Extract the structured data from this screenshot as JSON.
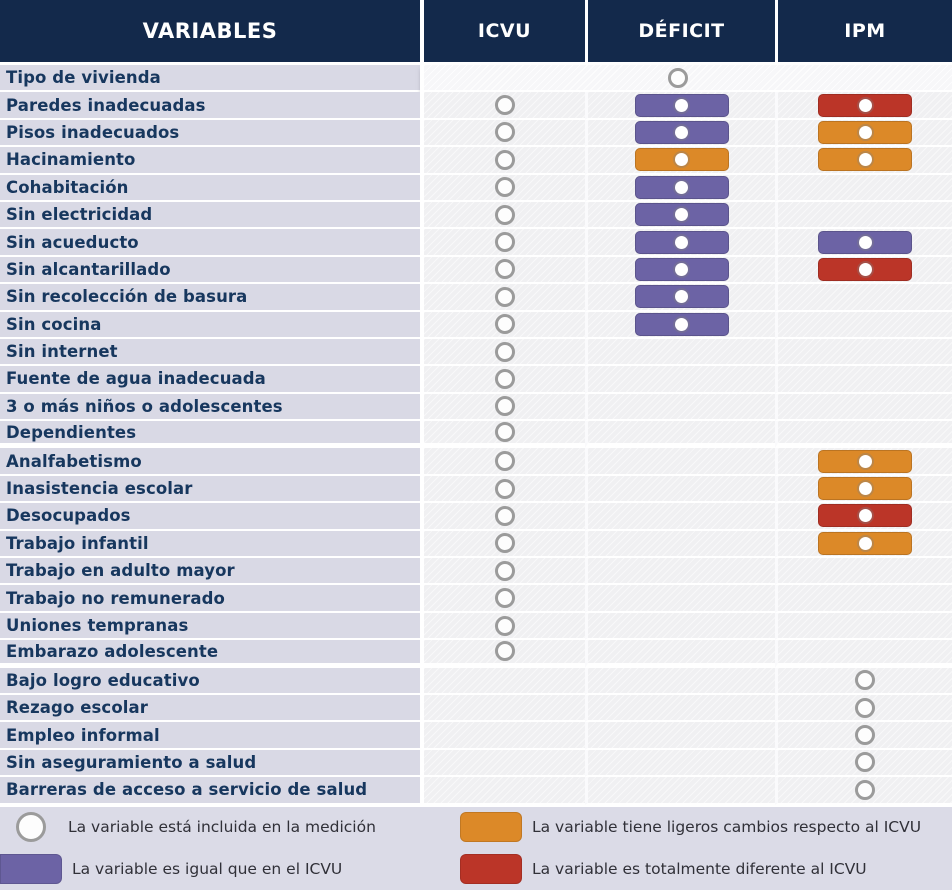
{
  "chart_data": {
    "type": "table",
    "columns": [
      "VARIABLES",
      "ICVU",
      "DÉFICIT",
      "IPM"
    ],
    "marker_legend": [
      {
        "type": "included",
        "text": "La variable está incluida en la medición"
      },
      {
        "type": "equal",
        "text": "La variable es igual que en el ICVU"
      },
      {
        "type": "slight",
        "text": "La variable tiene ligeros cambios respecto al ICVU"
      },
      {
        "type": "different",
        "text": "La variable es totalmente diferente al ICVU"
      }
    ],
    "rows": [
      {
        "label": "Tipo de vivienda",
        "icvu": null,
        "deficit": "included",
        "ipm": null,
        "full_band": true
      },
      {
        "label": "Paredes inadecuadas",
        "icvu": "included",
        "deficit": "equal",
        "ipm": "different"
      },
      {
        "label": "Pisos inadecuados",
        "icvu": "included",
        "deficit": "equal",
        "ipm": "slight"
      },
      {
        "label": "Hacinamiento",
        "icvu": "included",
        "deficit": "slight",
        "ipm": "slight"
      },
      {
        "label": "Cohabitación",
        "icvu": "included",
        "deficit": "equal",
        "ipm": null
      },
      {
        "label": "Sin electricidad",
        "icvu": "included",
        "deficit": "equal",
        "ipm": null
      },
      {
        "label": "Sin acueducto",
        "icvu": "included",
        "deficit": "equal",
        "ipm": "equal"
      },
      {
        "label": "Sin alcantarillado",
        "icvu": "included",
        "deficit": "equal",
        "ipm": "different"
      },
      {
        "label": "Sin recolección de basura",
        "icvu": "included",
        "deficit": "equal",
        "ipm": null
      },
      {
        "label": "Sin cocina",
        "icvu": "included",
        "deficit": "equal",
        "ipm": null
      },
      {
        "label": "Sin internet",
        "icvu": "included",
        "deficit": null,
        "ipm": null
      },
      {
        "label": "Fuente de agua inadecuada",
        "icvu": "included",
        "deficit": null,
        "ipm": null
      },
      {
        "label": "3 o más niños o adolescentes",
        "icvu": "included",
        "deficit": null,
        "ipm": null
      },
      {
        "label": "Dependientes",
        "icvu": "included",
        "deficit": null,
        "ipm": null,
        "group_end": true
      },
      {
        "label": "Analfabetismo",
        "icvu": "included",
        "deficit": null,
        "ipm": "slight"
      },
      {
        "label": "Inasistencia escolar",
        "icvu": "included",
        "deficit": null,
        "ipm": "slight"
      },
      {
        "label": "Desocupados",
        "icvu": "included",
        "deficit": null,
        "ipm": "different"
      },
      {
        "label": "Trabajo infantil",
        "icvu": "included",
        "deficit": null,
        "ipm": "slight"
      },
      {
        "label": "Trabajo en adulto mayor",
        "icvu": "included",
        "deficit": null,
        "ipm": null
      },
      {
        "label": "Trabajo no remunerado",
        "icvu": "included",
        "deficit": null,
        "ipm": null
      },
      {
        "label": "Uniones tempranas",
        "icvu": "included",
        "deficit": null,
        "ipm": null
      },
      {
        "label": "Embarazo adolescente",
        "icvu": "included",
        "deficit": null,
        "ipm": null,
        "group_end": true
      },
      {
        "label": "Bajo logro educativo",
        "icvu": null,
        "deficit": null,
        "ipm": "included"
      },
      {
        "label": "Rezago escolar",
        "icvu": null,
        "deficit": null,
        "ipm": "included"
      },
      {
        "label": "Empleo informal",
        "icvu": null,
        "deficit": null,
        "ipm": "included"
      },
      {
        "label": "Sin aseguramiento a salud",
        "icvu": null,
        "deficit": null,
        "ipm": "included"
      },
      {
        "label": "Barreras de acceso a servicio de salud",
        "icvu": null,
        "deficit": null,
        "ipm": "included"
      }
    ]
  },
  "colors": {
    "header_bg": "#13294B",
    "label_bg": "#D9D9E5",
    "label_text": "#17375E",
    "marker_area_bg": "#F0F0F2",
    "band_bg": "#F7F7F9",
    "equal": "#6C63A5",
    "slight": "#DC8928",
    "different": "#BB3528",
    "circle_border": "#9B9B9B",
    "legend_bg": "#DBDBE7",
    "legend_text": "#303038"
  }
}
